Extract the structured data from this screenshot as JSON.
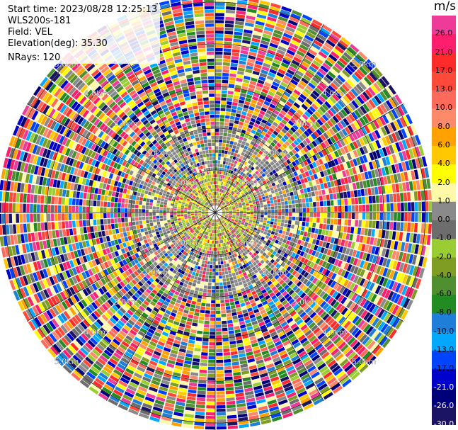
{
  "header": {
    "start_time": "Start time: 2023/08/28 12:25:13",
    "instrument": "WLS200s-181",
    "field": "Field: VEL",
    "elevation": "Elevation(deg): 35.30",
    "nrays": "NRays: 120"
  },
  "colorbar": {
    "unit": "m/s",
    "levels": [
      {
        "label": "26.0",
        "color": "#ee3b9a"
      },
      {
        "label": "21.0",
        "color": "#ff1e6e"
      },
      {
        "label": "17.0",
        "color": "#ff2a2a"
      },
      {
        "label": "13.0",
        "color": "#ff4a3a"
      },
      {
        "label": "10.0",
        "color": "#ff6a5a"
      },
      {
        "label": "8.0",
        "color": "#ff8a6a"
      },
      {
        "label": "6.0",
        "color": "#ffa200"
      },
      {
        "label": "4.0",
        "color": "#ffc800"
      },
      {
        "label": "2.0",
        "color": "#ffff00"
      },
      {
        "label": "1.0",
        "color": "#fff9a8"
      },
      {
        "label": "0.0",
        "color": "#8a8a8a"
      },
      {
        "label": "-1.0",
        "color": "#6d6d6d"
      },
      {
        "label": "-2.0",
        "color": "#9acd32"
      },
      {
        "label": "-4.0",
        "color": "#7f9c23"
      },
      {
        "label": "-6.0",
        "color": "#4f8f2f"
      },
      {
        "label": "-8.0",
        "color": "#228b22"
      },
      {
        "label": "-10.0",
        "color": "#1e7ed8"
      },
      {
        "label": "-13.0",
        "color": "#00a8ff"
      },
      {
        "label": "-17.0",
        "color": "#0044ff"
      },
      {
        "label": "-21.0",
        "color": "#0000cd"
      },
      {
        "label": "-26.0",
        "color": "#00007a"
      },
      {
        "label": "-30.0",
        "color": "#1b1464"
      }
    ]
  },
  "range_rings": [
    {
      "label": "1.0km"
    },
    {
      "label": "2.0km"
    },
    {
      "label": "3.0km"
    },
    {
      "label": "4.0km"
    },
    {
      "label": "5.0km"
    }
  ]
}
